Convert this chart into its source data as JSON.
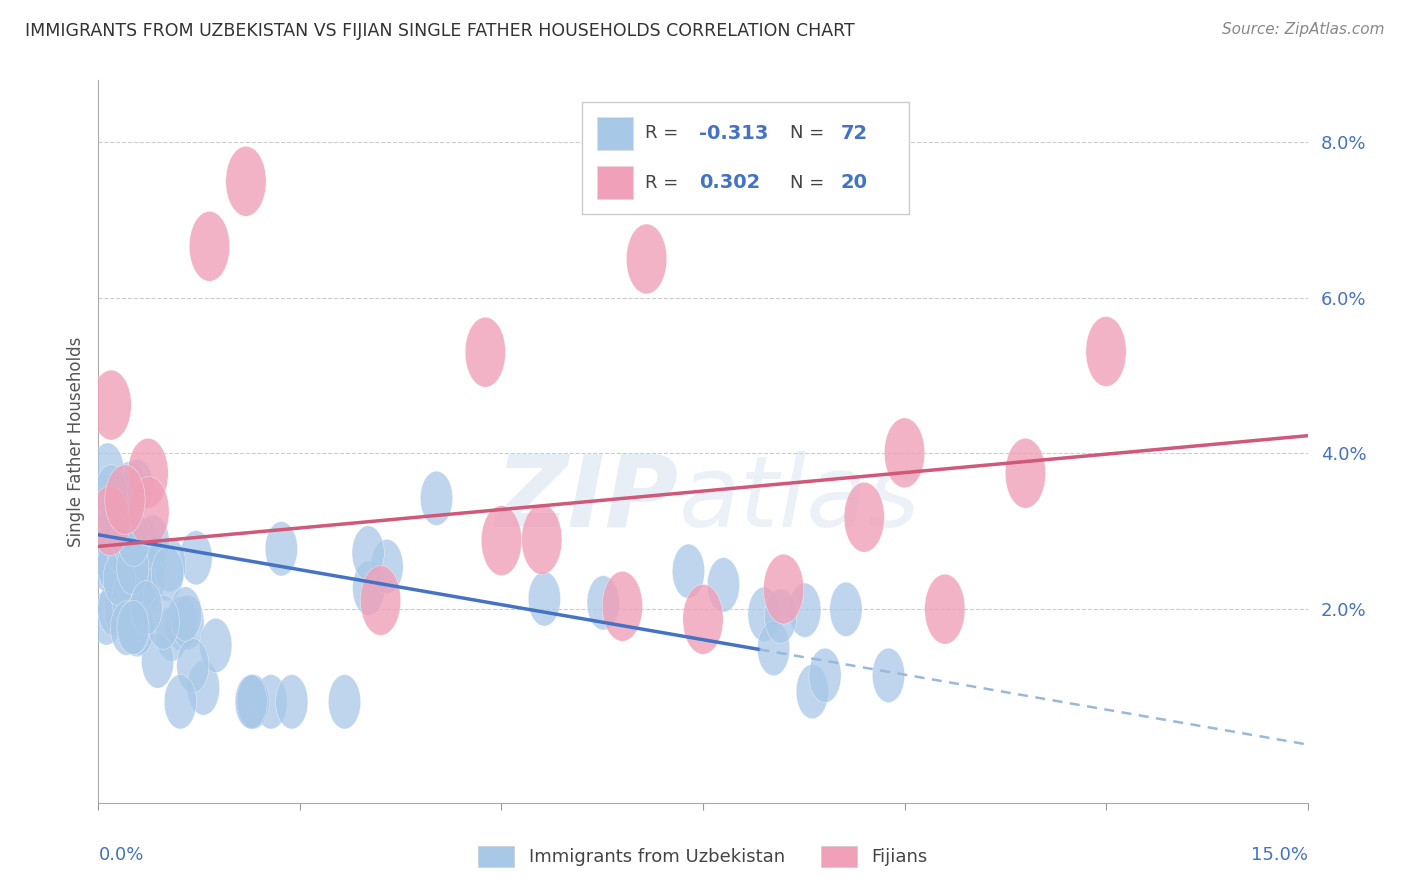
{
  "title": "IMMIGRANTS FROM UZBEKISTAN VS FIJIAN SINGLE FATHER HOUSEHOLDS CORRELATION CHART",
  "source": "Source: ZipAtlas.com",
  "ylabel": "Single Father Households",
  "xlim": [
    0.0,
    0.15
  ],
  "ylim": [
    -0.005,
    0.088
  ],
  "blue_color": "#a8c8e8",
  "pink_color": "#f0a0b8",
  "line_blue": "#4472c4",
  "line_pink": "#d05878",
  "line_dash_color": "#9ab8d8",
  "background_color": "#ffffff",
  "grid_color": "#cccccc",
  "watermark_zip": "ZIP",
  "watermark_atlas": "atlas",
  "legend_r1_label": "R = ",
  "legend_r1_val": "-0.313",
  "legend_n1_label": "N = ",
  "legend_n1_val": "72",
  "legend_r2_label": "R =  ",
  "legend_r2_val": "0.302",
  "legend_n2_label": "N = ",
  "legend_n2_val": "20",
  "bottom_legend1": "Immigrants from Uzbekistan",
  "bottom_legend2": "Fijians"
}
